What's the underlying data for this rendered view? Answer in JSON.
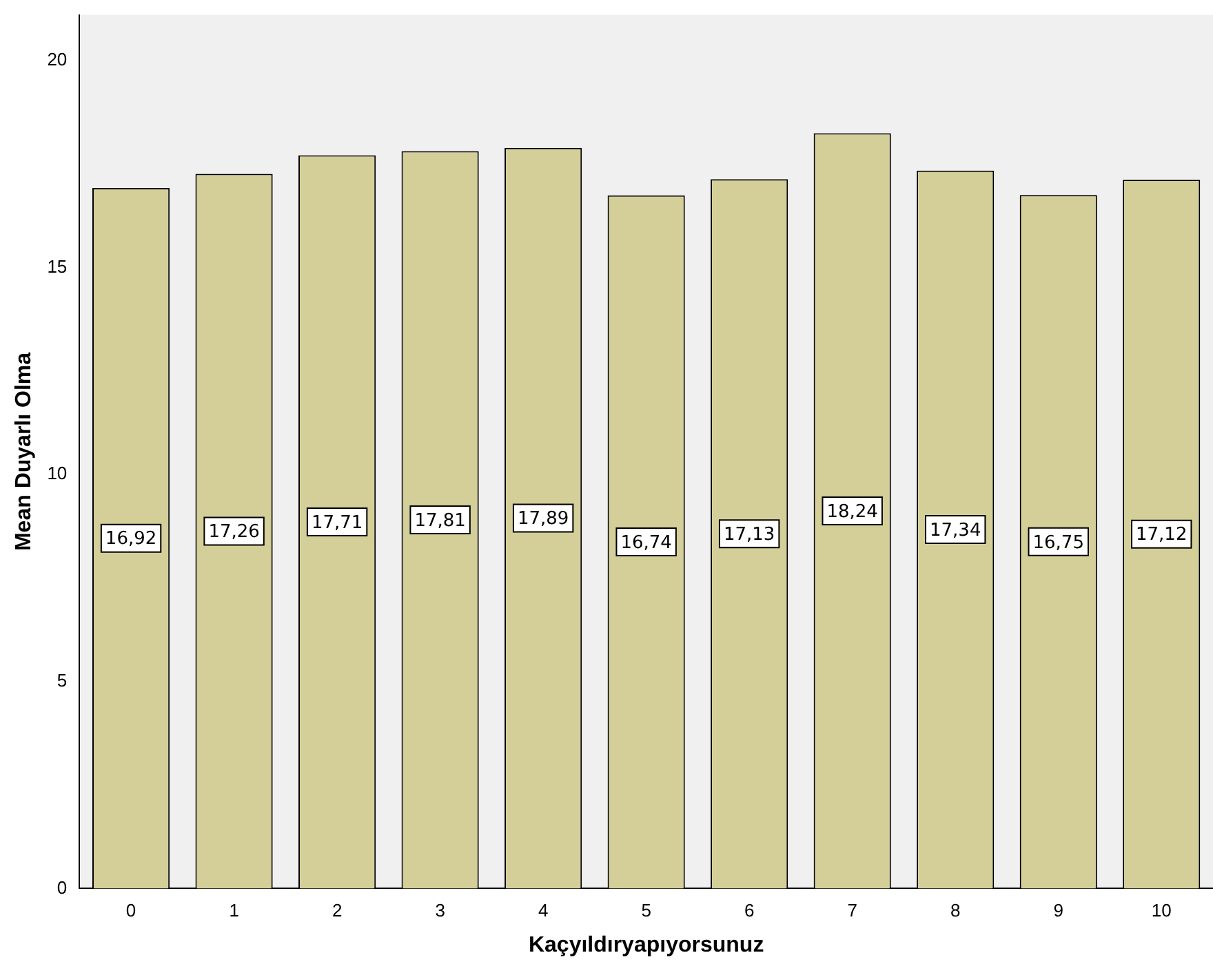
{
  "chart_data": {
    "type": "bar",
    "xlabel": "Kaçyıldıryapıyorsunuz",
    "ylabel": "Mean Duyarlı Olma",
    "categories": [
      "0",
      "1",
      "2",
      "3",
      "4",
      "5",
      "6",
      "7",
      "8",
      "9",
      "10"
    ],
    "values": [
      16.92,
      17.26,
      17.71,
      17.81,
      17.89,
      16.74,
      17.13,
      18.24,
      17.34,
      16.75,
      17.12
    ],
    "value_labels": [
      "16,92",
      "17,26",
      "17,71",
      "17,81",
      "17,89",
      "16,74",
      "17,13",
      "18,24",
      "17,34",
      "16,75",
      "17,12"
    ],
    "color": "#d4cf99",
    "ylim": [
      0,
      21.1
    ],
    "yticks": [
      0,
      5,
      10,
      15,
      20
    ],
    "grid": false,
    "legend": false
  }
}
